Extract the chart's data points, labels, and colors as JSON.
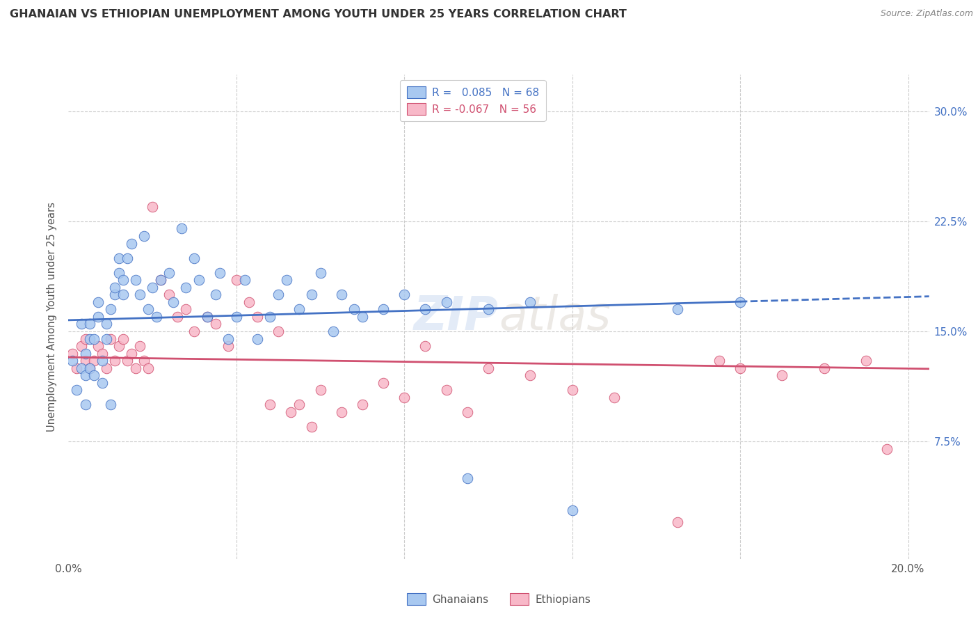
{
  "title": "GHANAIAN VS ETHIOPIAN UNEMPLOYMENT AMONG YOUTH UNDER 25 YEARS CORRELATION CHART",
  "source": "Source: ZipAtlas.com",
  "ylabel": "Unemployment Among Youth under 25 years",
  "xlim": [
    0.0,
    0.205
  ],
  "ylim": [
    -0.005,
    0.325
  ],
  "xticks": [
    0.0,
    0.04,
    0.08,
    0.12,
    0.16,
    0.2
  ],
  "xtick_labels": [
    "0.0%",
    "",
    "",
    "",
    "",
    "20.0%"
  ],
  "yticks": [
    0.0,
    0.075,
    0.15,
    0.225,
    0.3
  ],
  "ytick_labels": [
    "",
    "7.5%",
    "15.0%",
    "22.5%",
    "30.0%"
  ],
  "ghanaian_color": "#a8c8f0",
  "ethiopian_color": "#f8b8c8",
  "ghanaian_line_color": "#4472c4",
  "ethiopian_line_color": "#d05070",
  "ghanaian_R": 0.085,
  "ghanaian_N": 68,
  "ethiopian_R": -0.067,
  "ethiopian_N": 56,
  "watermark_text": "ZIP atlas",
  "background_color": "#ffffff",
  "grid_color": "#cccccc",
  "title_color": "#333333",
  "source_color": "#888888",
  "tick_color": "#4472c4",
  "ylabel_color": "#555555",
  "ghanaian_x": [
    0.001,
    0.002,
    0.003,
    0.003,
    0.004,
    0.004,
    0.004,
    0.005,
    0.005,
    0.005,
    0.006,
    0.006,
    0.007,
    0.007,
    0.008,
    0.008,
    0.009,
    0.009,
    0.01,
    0.01,
    0.011,
    0.011,
    0.012,
    0.012,
    0.013,
    0.013,
    0.014,
    0.015,
    0.016,
    0.017,
    0.018,
    0.019,
    0.02,
    0.021,
    0.022,
    0.024,
    0.025,
    0.027,
    0.028,
    0.03,
    0.031,
    0.033,
    0.035,
    0.036,
    0.038,
    0.04,
    0.042,
    0.045,
    0.048,
    0.05,
    0.052,
    0.055,
    0.058,
    0.06,
    0.063,
    0.065,
    0.068,
    0.07,
    0.075,
    0.08,
    0.085,
    0.09,
    0.095,
    0.1,
    0.11,
    0.12,
    0.145,
    0.16
  ],
  "ghanaian_y": [
    0.13,
    0.11,
    0.125,
    0.155,
    0.135,
    0.12,
    0.1,
    0.125,
    0.145,
    0.155,
    0.12,
    0.145,
    0.16,
    0.17,
    0.115,
    0.13,
    0.145,
    0.155,
    0.1,
    0.165,
    0.175,
    0.18,
    0.19,
    0.2,
    0.175,
    0.185,
    0.2,
    0.21,
    0.185,
    0.175,
    0.215,
    0.165,
    0.18,
    0.16,
    0.185,
    0.19,
    0.17,
    0.22,
    0.18,
    0.2,
    0.185,
    0.16,
    0.175,
    0.19,
    0.145,
    0.16,
    0.185,
    0.145,
    0.16,
    0.175,
    0.185,
    0.165,
    0.175,
    0.19,
    0.15,
    0.175,
    0.165,
    0.16,
    0.165,
    0.175,
    0.165,
    0.17,
    0.05,
    0.165,
    0.17,
    0.028,
    0.165,
    0.17
  ],
  "ethiopian_x": [
    0.001,
    0.002,
    0.003,
    0.004,
    0.004,
    0.005,
    0.006,
    0.007,
    0.008,
    0.009,
    0.01,
    0.011,
    0.012,
    0.013,
    0.014,
    0.015,
    0.016,
    0.017,
    0.018,
    0.019,
    0.02,
    0.022,
    0.024,
    0.026,
    0.028,
    0.03,
    0.033,
    0.035,
    0.038,
    0.04,
    0.043,
    0.045,
    0.048,
    0.05,
    0.053,
    0.055,
    0.058,
    0.06,
    0.065,
    0.07,
    0.075,
    0.08,
    0.085,
    0.09,
    0.095,
    0.1,
    0.11,
    0.12,
    0.13,
    0.145,
    0.155,
    0.16,
    0.17,
    0.18,
    0.19,
    0.195
  ],
  "ethiopian_y": [
    0.135,
    0.125,
    0.14,
    0.13,
    0.145,
    0.125,
    0.13,
    0.14,
    0.135,
    0.125,
    0.145,
    0.13,
    0.14,
    0.145,
    0.13,
    0.135,
    0.125,
    0.14,
    0.13,
    0.125,
    0.235,
    0.185,
    0.175,
    0.16,
    0.165,
    0.15,
    0.16,
    0.155,
    0.14,
    0.185,
    0.17,
    0.16,
    0.1,
    0.15,
    0.095,
    0.1,
    0.085,
    0.11,
    0.095,
    0.1,
    0.115,
    0.105,
    0.14,
    0.11,
    0.095,
    0.125,
    0.12,
    0.11,
    0.105,
    0.02,
    0.13,
    0.125,
    0.12,
    0.125,
    0.13,
    0.07
  ]
}
